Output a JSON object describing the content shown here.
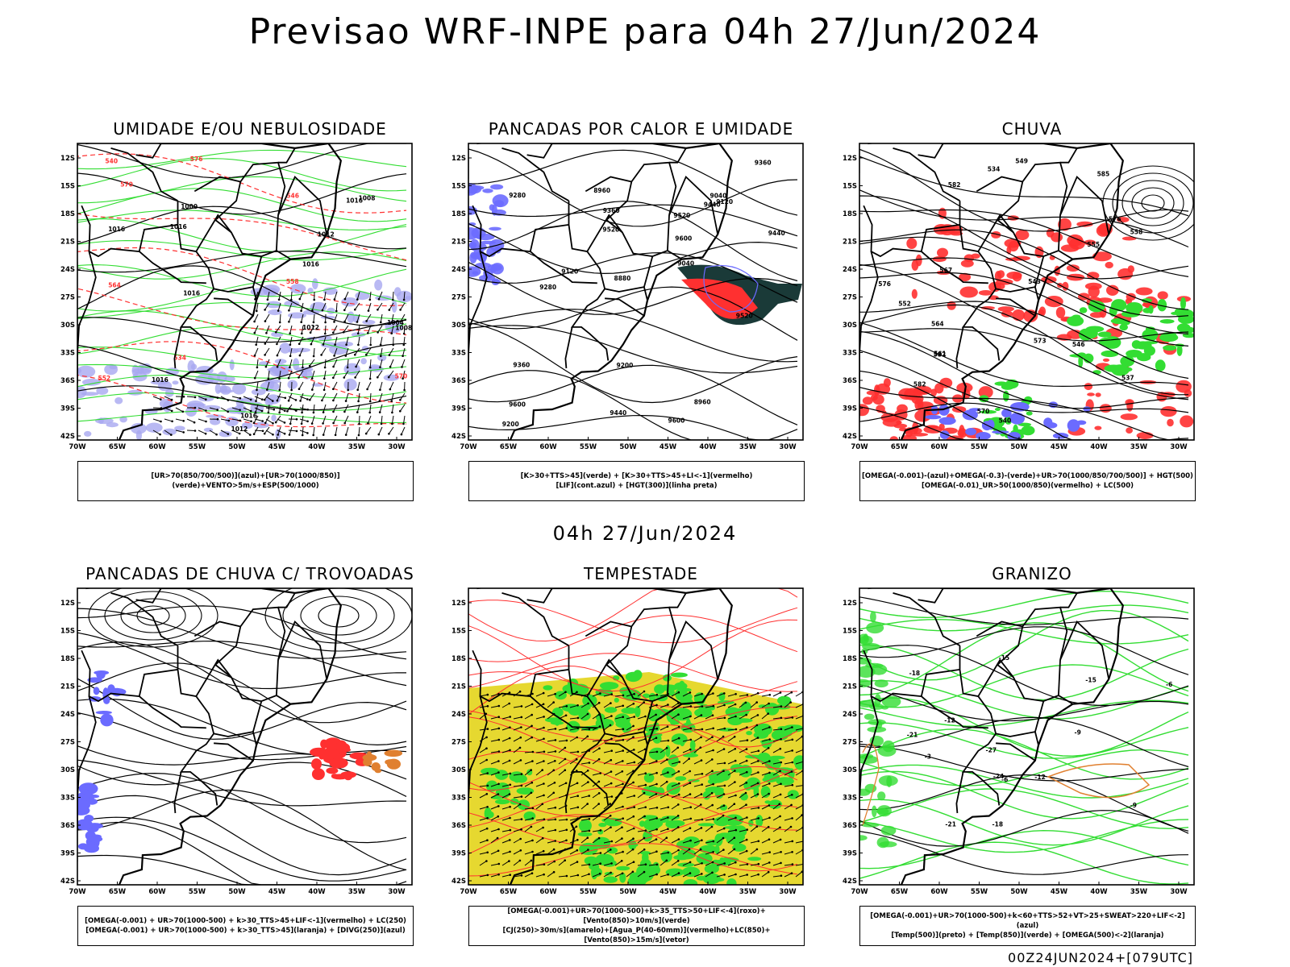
{
  "main_title": "Previsao WRF-INPE  para 04h 27/Jun/2024",
  "mid_title": "04h 27/Jun/2024",
  "footer": "00Z24JUN2024+[079UTC]",
  "axes": {
    "lat_labels": [
      "12S",
      "15S",
      "18S",
      "21S",
      "24S",
      "27S",
      "30S",
      "33S",
      "36S",
      "39S",
      "42S"
    ],
    "lon_labels": [
      "70W",
      "65W",
      "60W",
      "55W",
      "50W",
      "45W",
      "40W",
      "35W",
      "30W"
    ]
  },
  "colors": {
    "blue": "#6b6bff",
    "lavender": "#a8a8f0",
    "green": "#33dd33",
    "red": "#ff3030",
    "orange": "#e08030",
    "yellow": "#e6d830",
    "darkteal": "#1a3a38"
  },
  "panels": [
    {
      "title": "UMIDADE E/OU NEBULOSIDADE",
      "legend": [
        "[UR>70(850/700/500)](azul)+[UR>70(1000/850)](verde)+VENTO>5m/s+ESP(500/1000)"
      ],
      "labels": [
        "1016",
        "1016",
        "1016",
        "1016",
        "1016",
        "1012",
        "1012",
        "1016",
        "1008",
        "1008",
        "1004",
        "1000",
        "1012",
        "1016",
        "570",
        "564",
        "558",
        "552",
        "546",
        "540",
        "534",
        "570",
        "576"
      ]
    },
    {
      "title": "PANCADAS POR CALOR E UMIDADE",
      "legend": [
        "[K>30+TTS>45](verde) + [K>30+TTS>45+LI<-1](vermelho)",
        "[LIF](cont.azul) + [HGT(300)](linha preta)"
      ],
      "labels": [
        "9600",
        "9520",
        "9440",
        "9360",
        "9600",
        "9520",
        "9440",
        "9360",
        "9280",
        "9200",
        "9120",
        "9040",
        "8960",
        "8880",
        "9600",
        "9520",
        "9440",
        "9360",
        "9280",
        "9200",
        "9120",
        "9040",
        "8960"
      ]
    },
    {
      "title": "CHUVA",
      "legend": [
        "[OMEGA(-0.001)-(azul)+OMEGA(-0.3)-(verde)+UR>70(1000/850/700/500)] + HGT(500)",
        "[OMEGA(-0.01)_UR>50(1000/850)(vermelho) + LC(500)"
      ],
      "labels": [
        "582",
        "585",
        "582",
        "576",
        "573",
        "567",
        "564",
        "561",
        "558",
        "555",
        "552",
        "549",
        "546",
        "543",
        "540",
        "534",
        "537",
        "576",
        "582",
        "570"
      ]
    },
    {
      "title": "PANCADAS DE CHUVA C/ TROVOADAS",
      "legend": [
        "[OMEGA(-0.001) + UR>70(1000-500) + k>30_TTS>45+LIF<-1](vermelho) + LC(250)",
        "[OMEGA(-0.001) + UR>70(1000-500) + k>30_TTS>45](laranja) + [DIVG(250)](azul)"
      ],
      "labels": []
    },
    {
      "title": "TEMPESTADE",
      "legend": [
        "[OMEGA(-0.001)+UR>70(1000-500)+k>35_TTS>50+LIF<-4](roxo)+[Vento(850)>10m/s](verde)",
        "[CJ(250)>30m/s](amarelo)+[Agua_P(40-60mm)](vermelho)+LC(850)+[Vento(850)>15m/s](vetor)"
      ],
      "labels": []
    },
    {
      "title": "GRANIZO",
      "legend": [
        "[OMEGA(-0.001)+UR>70(1000-500)+k<60+TTS>52+VT>25+SWEAT>220+LIF<-2](azul)",
        "[Temp(500)](preto) + [Temp(850)](verde) + [OMEGA(500)<-2](laranja)"
      ],
      "labels": [
        "-3",
        "-6",
        "-9",
        "-12",
        "-15",
        "-18",
        "-21",
        "-24",
        "-27",
        "-12",
        "-15",
        "-18",
        "-21",
        "-9",
        "-6"
      ]
    }
  ]
}
